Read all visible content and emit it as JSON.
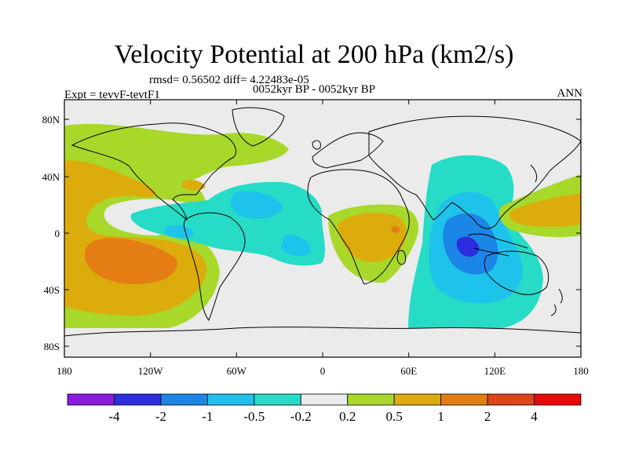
{
  "figure": {
    "title": "Velocity Potential at 200 hPa (km2/s)",
    "rmsd_line": "rmsd= 0.56502 diff= 4.22483e-05",
    "experiment": "Expt = tevvF-tevtF1",
    "period": "0052kyr BP - 0052kyr BP",
    "season": "ANN"
  },
  "axes": {
    "lat_labels": [
      "80N",
      "40N",
      "0",
      "40S",
      "80S"
    ],
    "lon_labels": [
      "180",
      "120W",
      "60W",
      "0",
      "60E",
      "120E",
      "180"
    ]
  },
  "colorbar": {
    "labels": [
      "-4",
      "-2",
      "-1",
      "-0.5",
      "-0.2",
      "0.2",
      "0.5",
      "1",
      "2",
      "4"
    ],
    "colors": [
      "#8a1be3",
      "#2c2ce0",
      "#1c86e6",
      "#1ec3ec",
      "#26dcc6",
      "#ebebeb",
      "#a8d82a",
      "#dcac0c",
      "#e47e14",
      "#e0421a",
      "#e60a0a"
    ]
  },
  "chart_data": {
    "type": "contour-map",
    "title": "Velocity Potential at 200 hPa (km2/s)",
    "projection": "cylindrical-equidistant",
    "lon_range": [
      -180,
      180
    ],
    "lat_range": [
      -90,
      90
    ],
    "levels": [
      -4,
      -2,
      -1,
      -0.5,
      -0.2,
      0.2,
      0.5,
      1,
      2,
      4
    ],
    "colors": [
      "#8a1be3",
      "#2c2ce0",
      "#1c86e6",
      "#1ec3ec",
      "#26dcc6",
      "#ebebeb",
      "#a8d82a",
      "#dcac0c",
      "#e47e14",
      "#e0421a",
      "#e60a0a"
    ],
    "features": [
      {
        "name": "eastern Pacific positive center",
        "lon": -145,
        "lat": -25,
        "peak": 1.5
      },
      {
        "name": "North Atlantic / Canada positive band",
        "lon": -80,
        "lat": 55,
        "peak": 0.4
      },
      {
        "name": "Gulf of Mexico positive patch",
        "lon": -90,
        "lat": 30,
        "peak": 0.6
      },
      {
        "name": "East Africa positive center",
        "lon": 30,
        "lat": 0,
        "peak": 0.9
      },
      {
        "name": "western Pacific positive tongue",
        "lon": 160,
        "lat": 15,
        "peak": 0.6
      },
      {
        "name": "tropical Atlantic negative band",
        "lon": -50,
        "lat": 0,
        "peak": -0.5
      },
      {
        "name": "Maritime Continent / Indian Ocean negative center",
        "lon": 100,
        "lat": -10,
        "peak": -2.5
      }
    ]
  }
}
